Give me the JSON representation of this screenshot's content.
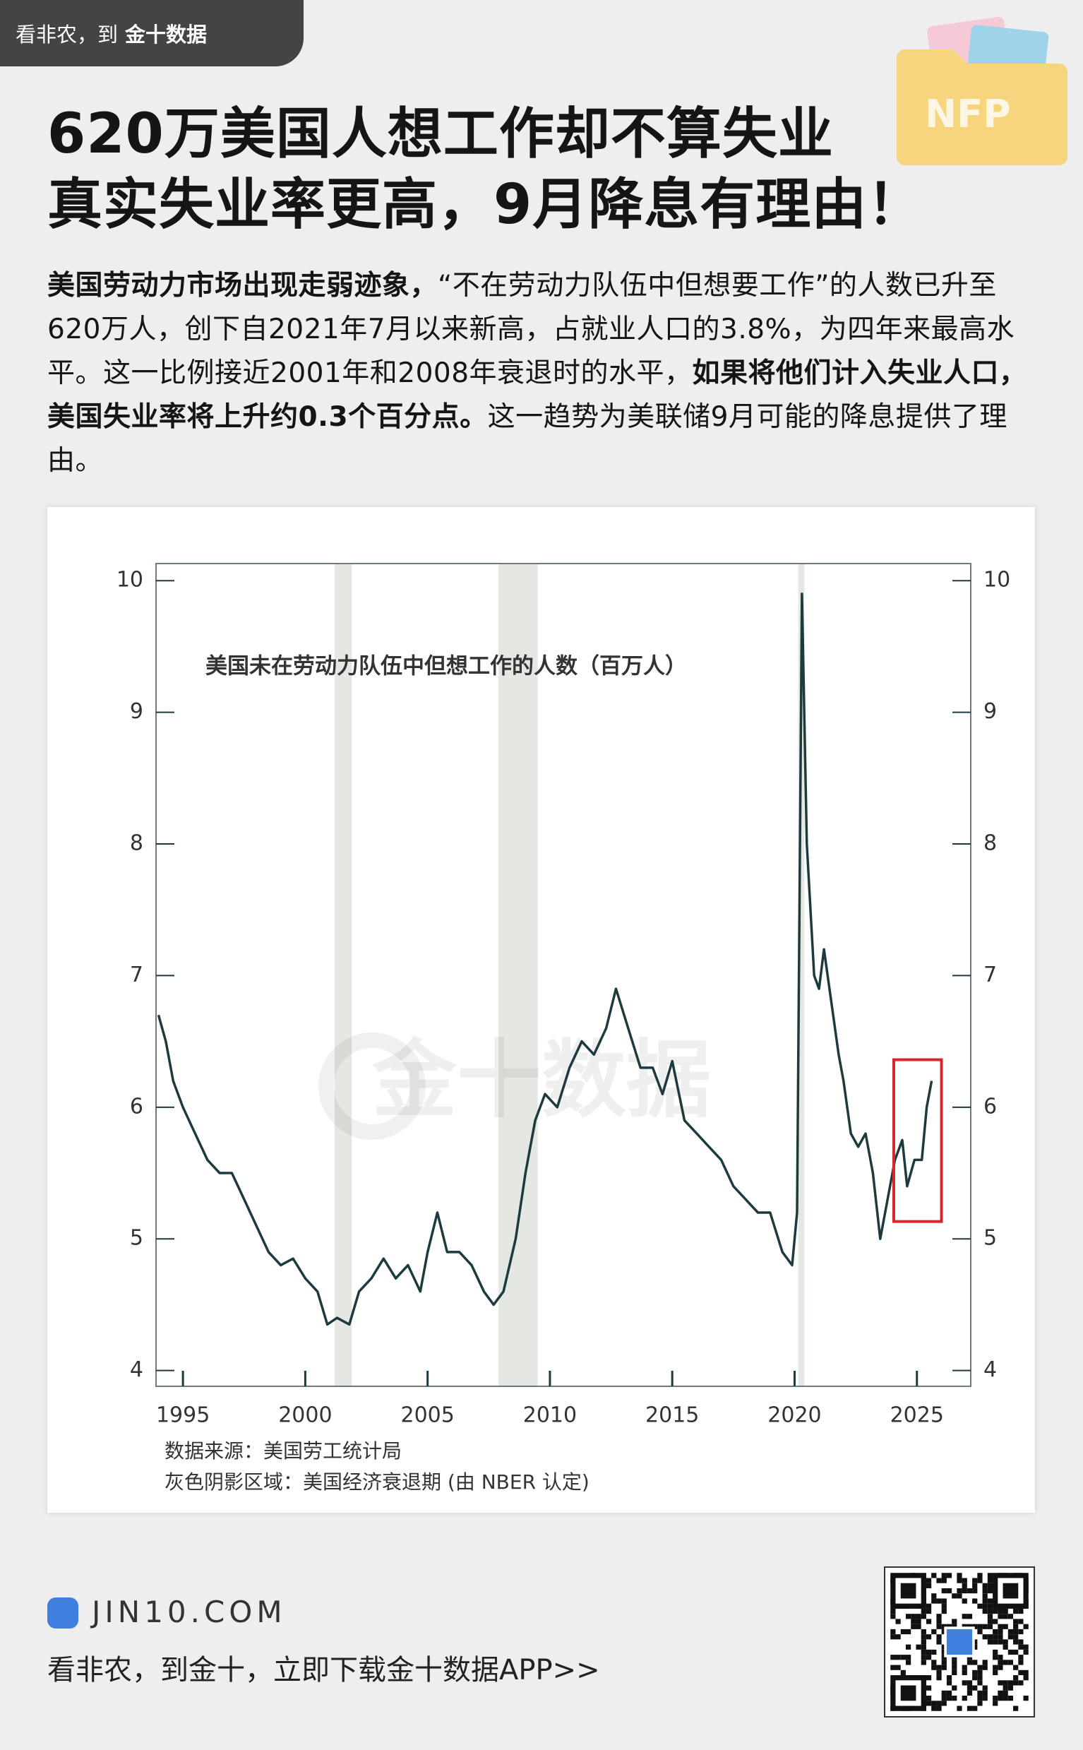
{
  "header": {
    "tab": "看非农，到",
    "brand": "金十数据"
  },
  "title": [
    "620万美国人想工作却不算失业",
    "真实失业率更高，9月降息有理由！"
  ],
  "intro": [
    {
      "text": "美国劳动力市场出现走弱迹象，",
      "bold": true
    },
    {
      "text": "“不在劳动力队伍中但想要工作”的人数已升至620万人，创下自2021年7月以来新高，占就业人口的3.8%，为四年来最高水平。这一比例接近2001年和2008年衰退时的水平，",
      "bold": false
    },
    {
      "text": "如果将他们计入失业人口，美国失业率将上升约0.3个百分点。",
      "bold": true
    },
    {
      "text": "这一趋势为美联储9月可能的降息提供了理由。",
      "bold": false
    }
  ],
  "chart_data": {
    "type": "line",
    "title": "美国未在劳动力队伍中但想工作的人数（百万人）",
    "x": [
      1994.0,
      1994.3,
      1994.6,
      1995.0,
      1995.5,
      1996.0,
      1996.5,
      1997.0,
      1997.5,
      1998.0,
      1998.5,
      1999.0,
      1999.5,
      2000.0,
      2000.5,
      2000.9,
      2001.3,
      2001.8,
      2002.2,
      2002.7,
      2003.2,
      2003.7,
      2004.2,
      2004.7,
      2005.0,
      2005.4,
      2005.8,
      2006.3,
      2006.8,
      2007.3,
      2007.7,
      2008.1,
      2008.6,
      2009.0,
      2009.4,
      2009.8,
      2010.3,
      2010.8,
      2011.3,
      2011.8,
      2012.3,
      2012.7,
      2013.2,
      2013.7,
      2014.2,
      2014.6,
      2015.0,
      2015.5,
      2016.0,
      2016.5,
      2017.0,
      2017.5,
      2018.0,
      2018.5,
      2019.0,
      2019.5,
      2019.9,
      2020.1,
      2020.3,
      2020.5,
      2020.8,
      2021.0,
      2021.2,
      2021.5,
      2021.8,
      2022.0,
      2022.3,
      2022.6,
      2022.9,
      2023.2,
      2023.5,
      2023.8,
      2024.1,
      2024.4,
      2024.6,
      2024.9,
      2025.2,
      2025.4,
      2025.6
    ],
    "values": [
      6.7,
      6.5,
      6.2,
      6.0,
      5.8,
      5.6,
      5.5,
      5.5,
      5.3,
      5.1,
      4.9,
      4.8,
      4.85,
      4.7,
      4.6,
      4.35,
      4.4,
      4.35,
      4.6,
      4.7,
      4.85,
      4.7,
      4.8,
      4.6,
      4.9,
      5.2,
      4.9,
      4.9,
      4.8,
      4.6,
      4.5,
      4.6,
      5.0,
      5.5,
      5.9,
      6.1,
      6.0,
      6.3,
      6.5,
      6.4,
      6.6,
      6.9,
      6.6,
      6.3,
      6.3,
      6.1,
      6.35,
      5.9,
      5.8,
      5.7,
      5.6,
      5.4,
      5.3,
      5.2,
      5.2,
      4.9,
      4.8,
      5.2,
      9.9,
      8.0,
      7.0,
      6.9,
      7.2,
      6.8,
      6.4,
      6.2,
      5.8,
      5.7,
      5.8,
      5.5,
      5.0,
      5.3,
      5.6,
      5.75,
      5.4,
      5.6,
      5.6,
      6.0,
      6.2
    ],
    "color": "#1d3a3f",
    "recessions": [
      [
        2001.2,
        2001.9
      ],
      [
        2007.9,
        2009.5
      ],
      [
        2020.15,
        2020.4
      ]
    ],
    "recession_color": "#e4e7e2",
    "highlight_color": "#d2282e",
    "xlim": [
      1993.9,
      2027.2
    ],
    "xticks": [
      1995,
      2000,
      2005,
      2010,
      2015,
      2020,
      2025
    ],
    "ylim": [
      3.88,
      10.13
    ],
    "yticks": [
      4,
      5,
      6,
      7,
      8,
      9,
      10
    ],
    "y2lim": [
      3.88,
      10.13
    ],
    "y2ticks": [
      4,
      5,
      6,
      7,
      8,
      9,
      10
    ],
    "watermark": "金十数据",
    "notes": [
      "数据来源：美国劳工统计局",
      "灰色阴影区域：美国经济衰退期 (由 NBER 认定)"
    ]
  },
  "footer": {
    "site": "JIN10.COM",
    "tagline": "看非农，到金十，立即下载金十数据APP>>"
  }
}
